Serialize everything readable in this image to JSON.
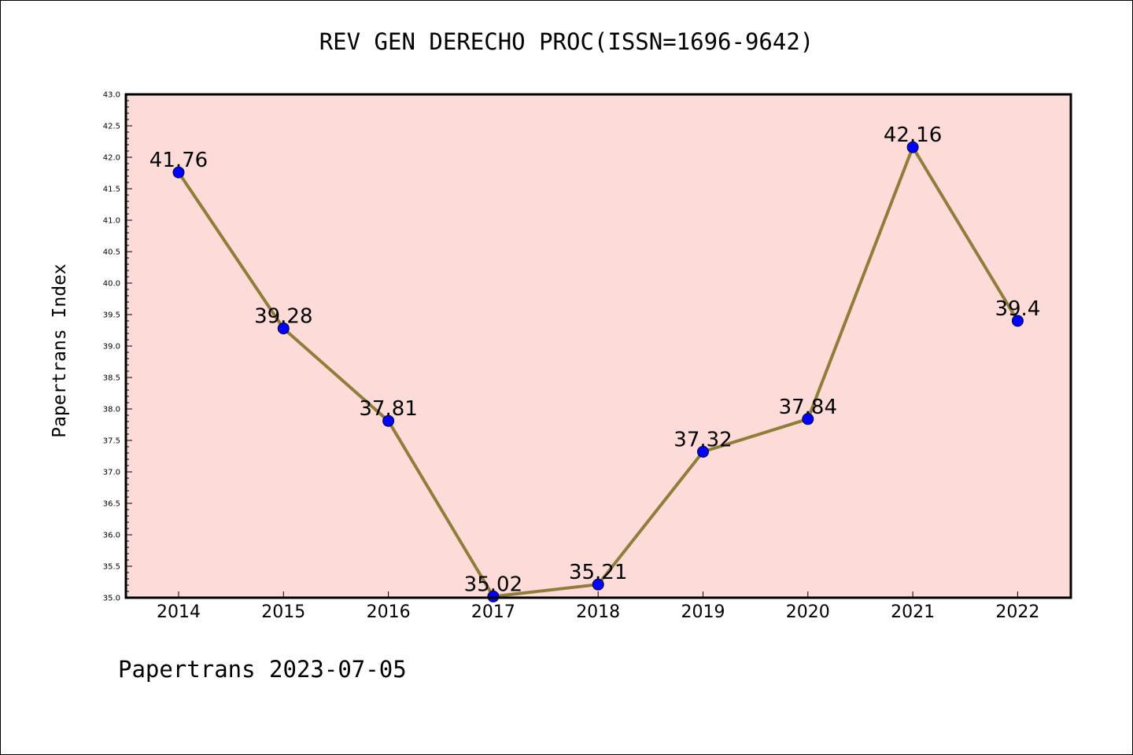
{
  "title": "REV GEN DERECHO PROC(ISSN=1696-9642)",
  "footer": "Papertrans 2023-07-05",
  "colors": {
    "plot_background": "#fddbd8",
    "line": "#8f7d3a",
    "marker": "#0000ff",
    "marker_edge": "#000033"
  },
  "chart_data": {
    "type": "line",
    "title": "REV GEN DERECHO PROC(ISSN=1696-9642)",
    "xlabel": "",
    "ylabel": "Papertrans Index",
    "categories": [
      "2014",
      "2015",
      "2016",
      "2017",
      "2018",
      "2019",
      "2020",
      "2021",
      "2022"
    ],
    "series": [
      {
        "values": [
          41.76,
          39.28,
          37.81,
          35.02,
          35.21,
          37.32,
          37.84,
          42.16,
          39.4
        ],
        "labels": [
          "41.76",
          "39.28",
          "37.81",
          "35.02",
          "35.21",
          "37.32",
          "37.84",
          "42.16",
          "39.4"
        ]
      }
    ],
    "ylim": [
      35.0,
      43.0
    ],
    "yticks": [
      "35.0",
      "35.5",
      "36.0",
      "36.5",
      "37.0",
      "37.5",
      "38.0",
      "38.5",
      "39.0",
      "39.5",
      "40.0",
      "40.5",
      "41.0",
      "41.5",
      "42.0",
      "42.5",
      "43.0"
    ],
    "grid": false,
    "legend": "none"
  }
}
